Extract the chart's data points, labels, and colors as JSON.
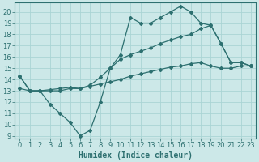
{
  "title": "",
  "xlabel": "Humidex (Indice chaleur)",
  "ylabel": "",
  "bg_color": "#cce8e8",
  "grid_color": "#aad4d4",
  "line_color": "#2d7070",
  "xlim": [
    -0.5,
    23.5
  ],
  "ylim": [
    8.8,
    20.8
  ],
  "xticks": [
    0,
    1,
    2,
    3,
    4,
    5,
    6,
    7,
    8,
    9,
    10,
    11,
    12,
    13,
    14,
    15,
    16,
    17,
    18,
    19,
    20,
    21,
    22,
    23
  ],
  "yticks": [
    9,
    10,
    11,
    12,
    13,
    14,
    15,
    16,
    17,
    18,
    19,
    20
  ],
  "line1_x": [
    0,
    1,
    2,
    3,
    4,
    5,
    6,
    7,
    8,
    9,
    10,
    11,
    12,
    13,
    14,
    15,
    16,
    17,
    18,
    19,
    20,
    21,
    22,
    23
  ],
  "line1_y": [
    14.3,
    13.0,
    13.0,
    11.8,
    11.0,
    10.2,
    9.0,
    9.5,
    12.0,
    15.0,
    16.2,
    19.5,
    19.0,
    19.0,
    19.5,
    20.0,
    20.5,
    20.0,
    19.0,
    18.8,
    17.2,
    15.5,
    15.5,
    15.2
  ],
  "line2_x": [
    0,
    1,
    2,
    3,
    4,
    5,
    6,
    7,
    8,
    9,
    10,
    11,
    12,
    13,
    14,
    15,
    16,
    17,
    18,
    19,
    20,
    21,
    22,
    23
  ],
  "line2_y": [
    14.3,
    13.0,
    13.0,
    13.0,
    13.0,
    13.2,
    13.2,
    13.5,
    14.2,
    15.0,
    15.8,
    16.2,
    16.5,
    16.8,
    17.2,
    17.5,
    17.8,
    18.0,
    18.5,
    18.8,
    17.2,
    15.5,
    15.5,
    15.2
  ],
  "line3_x": [
    0,
    1,
    2,
    3,
    4,
    5,
    6,
    7,
    8,
    9,
    10,
    11,
    12,
    13,
    14,
    15,
    16,
    17,
    18,
    19,
    20,
    21,
    22,
    23
  ],
  "line3_y": [
    13.2,
    13.0,
    13.0,
    13.1,
    13.2,
    13.3,
    13.2,
    13.4,
    13.6,
    13.8,
    14.0,
    14.3,
    14.5,
    14.7,
    14.9,
    15.1,
    15.2,
    15.4,
    15.5,
    15.2,
    15.0,
    15.0,
    15.2,
    15.2
  ],
  "marker_size": 2.0,
  "linewidth": 0.9,
  "xlabel_fontsize": 7,
  "tick_fontsize": 6
}
